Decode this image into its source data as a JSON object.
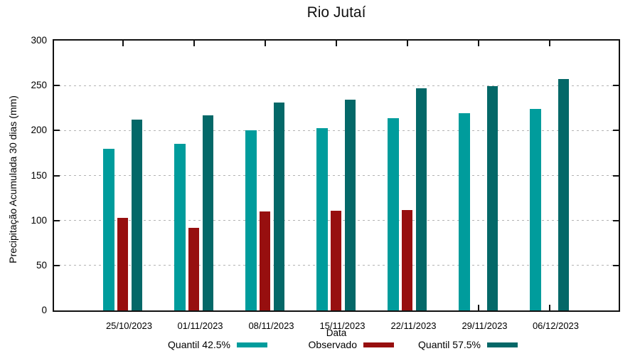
{
  "title": "Rio Jutaí",
  "chart_data": {
    "type": "bar",
    "title": "Rio Jutaí",
    "xlabel": "Data",
    "ylabel": "Precipitação Acumulada 30 dias (mm)",
    "categories": [
      "25/10/2023",
      "01/11/2023",
      "08/11/2023",
      "15/11/2023",
      "22/11/2023",
      "29/11/2023",
      "06/12/2023"
    ],
    "series": [
      {
        "name": "Quantil 42.5%",
        "color": "#009c9c",
        "values": [
          180,
          185,
          200,
          203,
          214,
          219,
          224
        ]
      },
      {
        "name": "Observado",
        "color": "#970f0f",
        "values": [
          103,
          92,
          110,
          111,
          112,
          null,
          null
        ]
      },
      {
        "name": "Quantil 57.5%",
        "color": "#046868",
        "values": [
          212,
          217,
          231,
          234,
          247,
          249,
          257
        ]
      }
    ],
    "ylim": [
      0,
      300
    ],
    "yticks": [
      0,
      50,
      100,
      150,
      200,
      250,
      300
    ],
    "grid": true,
    "grid_color": "#b3b3b3",
    "legend_position": "bottom"
  }
}
